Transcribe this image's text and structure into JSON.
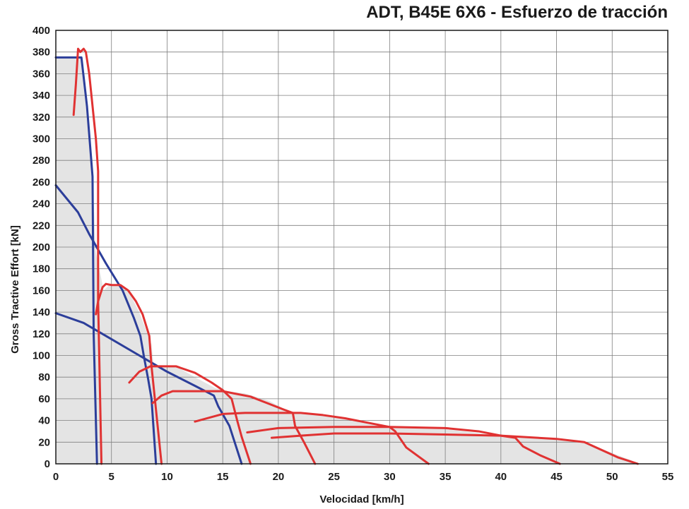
{
  "chart_data": {
    "type": "line",
    "title": "ADT, B45E 6X6 - Esfuerzo de tracción",
    "xlabel": "Velocidad [km/h]",
    "ylabel": "Gross Tractive Effort [kN]",
    "xlim": [
      0,
      55
    ],
    "ylim": [
      0,
      400
    ],
    "xticks": [
      0,
      5,
      10,
      15,
      20,
      25,
      30,
      35,
      40,
      45,
      50,
      55
    ],
    "yticks": [
      0,
      20,
      40,
      60,
      80,
      100,
      120,
      140,
      160,
      180,
      200,
      220,
      240,
      260,
      280,
      300,
      320,
      340,
      360,
      380,
      400
    ],
    "grid": true,
    "shaded_envelope": [
      [
        0,
        375
      ],
      [
        2.3,
        375
      ],
      [
        3.3,
        265
      ],
      [
        3.6,
        195
      ],
      [
        4.3,
        160
      ],
      [
        4.8,
        165
      ],
      [
        5.8,
        165
      ],
      [
        6.5,
        160
      ],
      [
        7.5,
        140
      ],
      [
        8.6,
        110
      ],
      [
        8.8,
        90
      ],
      [
        10.8,
        90
      ],
      [
        12.5,
        80
      ],
      [
        14.3,
        70
      ],
      [
        15.3,
        67
      ],
      [
        17,
        65
      ],
      [
        19.2,
        58
      ],
      [
        21.2,
        47
      ],
      [
        25,
        44
      ],
      [
        30,
        34
      ],
      [
        35,
        32
      ],
      [
        40,
        26
      ],
      [
        47.5,
        20
      ],
      [
        52.5,
        0
      ],
      [
        0,
        0
      ]
    ],
    "series": [
      {
        "color": "#2c3e9a",
        "points": [
          [
            0,
            375
          ],
          [
            2.3,
            375
          ],
          [
            2.8,
            330
          ],
          [
            3.3,
            265
          ],
          [
            3.4,
            120
          ],
          [
            3.7,
            0
          ]
        ]
      },
      {
        "color": "#2c3e9a",
        "points": [
          [
            0,
            257
          ],
          [
            2,
            232
          ],
          [
            3,
            212
          ],
          [
            4.5,
            185
          ],
          [
            6,
            160
          ],
          [
            7,
            135
          ],
          [
            7.6,
            118
          ],
          [
            7.9,
            100
          ],
          [
            8.3,
            78
          ],
          [
            8.6,
            60
          ],
          [
            9,
            0
          ]
        ]
      },
      {
        "color": "#2c3e9a",
        "points": [
          [
            0,
            139
          ],
          [
            2.5,
            130
          ],
          [
            5,
            115
          ],
          [
            7.5,
            100
          ],
          [
            10,
            85
          ],
          [
            12.5,
            72
          ],
          [
            14.2,
            63
          ],
          [
            14.6,
            53
          ],
          [
            15.6,
            35
          ],
          [
            16.7,
            0
          ]
        ]
      },
      {
        "color": "#e03232",
        "points": [
          [
            1.6,
            322
          ],
          [
            1.8,
            350
          ],
          [
            2,
            383
          ],
          [
            2.2,
            380
          ],
          [
            2.5,
            383
          ],
          [
            2.7,
            380
          ],
          [
            3,
            360
          ],
          [
            3.3,
            330
          ],
          [
            3.6,
            300
          ],
          [
            3.8,
            270
          ],
          [
            3.8,
            150
          ],
          [
            4.1,
            0
          ]
        ]
      },
      {
        "color": "#e03232",
        "points": [
          [
            3.6,
            138
          ],
          [
            3.8,
            150
          ],
          [
            4.2,
            163
          ],
          [
            4.5,
            166
          ],
          [
            5,
            165
          ],
          [
            5.8,
            165
          ],
          [
            6.5,
            160
          ],
          [
            7.2,
            150
          ],
          [
            7.8,
            138
          ],
          [
            8.4,
            118
          ],
          [
            8.6,
            90
          ],
          [
            9,
            50
          ],
          [
            9.3,
            20
          ],
          [
            9.5,
            0
          ]
        ]
      },
      {
        "color": "#e03232",
        "points": [
          [
            6.6,
            75
          ],
          [
            7.5,
            85
          ],
          [
            8.5,
            90
          ],
          [
            10.8,
            90
          ],
          [
            12.5,
            84
          ],
          [
            14,
            75
          ],
          [
            15,
            68
          ],
          [
            15.8,
            60
          ],
          [
            16.3,
            40
          ],
          [
            16.7,
            25
          ],
          [
            17.5,
            0
          ]
        ]
      },
      {
        "color": "#e03232",
        "points": [
          [
            8.7,
            56
          ],
          [
            9.5,
            63
          ],
          [
            10.5,
            67
          ],
          [
            13,
            67
          ],
          [
            15,
            67
          ],
          [
            16,
            65
          ],
          [
            17.5,
            62
          ],
          [
            18.5,
            58
          ],
          [
            19.5,
            54
          ],
          [
            20.5,
            50
          ],
          [
            21.3,
            47
          ],
          [
            21.5,
            35
          ],
          [
            22.3,
            20
          ],
          [
            23.3,
            0
          ]
        ]
      },
      {
        "color": "#e03232",
        "points": [
          [
            12.5,
            39
          ],
          [
            15,
            46
          ],
          [
            17,
            47
          ],
          [
            20,
            47
          ],
          [
            22,
            47
          ],
          [
            24,
            45
          ],
          [
            26,
            42
          ],
          [
            28,
            38
          ],
          [
            30,
            34
          ],
          [
            30.5,
            30
          ],
          [
            31.5,
            15
          ],
          [
            33.5,
            0
          ]
        ]
      },
      {
        "color": "#e03232",
        "points": [
          [
            17.2,
            29
          ],
          [
            20,
            33
          ],
          [
            25,
            34
          ],
          [
            30,
            34
          ],
          [
            35,
            33
          ],
          [
            38,
            30
          ],
          [
            40,
            26
          ],
          [
            41.3,
            24
          ],
          [
            42,
            16
          ],
          [
            43.5,
            8
          ],
          [
            45.3,
            0
          ]
        ]
      },
      {
        "color": "#e03232",
        "points": [
          [
            19.4,
            24
          ],
          [
            22,
            26
          ],
          [
            25,
            28
          ],
          [
            30,
            28
          ],
          [
            35,
            27
          ],
          [
            40,
            26
          ],
          [
            45,
            23
          ],
          [
            47.5,
            20
          ],
          [
            49,
            13
          ],
          [
            50.5,
            6
          ],
          [
            52.3,
            0
          ]
        ]
      }
    ]
  }
}
